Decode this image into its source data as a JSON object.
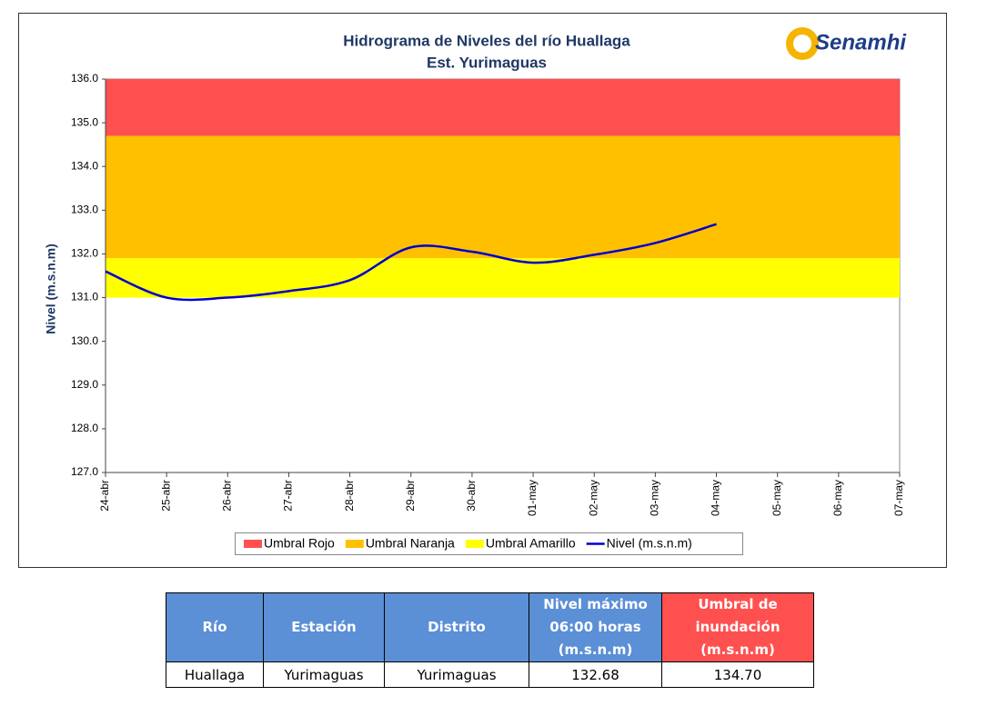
{
  "chart_data": {
    "type": "line",
    "title": "Hidrograma de Niveles del río Huallaga",
    "subtitle": "Est. Yurimaguas",
    "logo": "Senamhi",
    "y_label": "Nivel (m.s.n.m)",
    "categories": [
      "24-abr",
      "25-abr",
      "26-abr",
      "27-abr",
      "28-abr",
      "29-abr",
      "30-abr",
      "01-may",
      "02-may",
      "03-may",
      "04-may",
      "05-may",
      "06-may",
      "07-may"
    ],
    "bands": [
      {
        "name": "Umbral Rojo",
        "color": "#ff5050",
        "value": 134.7
      },
      {
        "name": "Umbral Naranja",
        "color": "#ffc000",
        "value": 131.9
      },
      {
        "name": "Umbral Amarillo",
        "color": "#ffff00",
        "value": 131.0
      }
    ],
    "series": [
      {
        "name": "Nivel (m.s.n.m)",
        "color": "#0000cc",
        "values": [
          131.6,
          131.0,
          131.0,
          131.15,
          131.4,
          132.15,
          132.05,
          131.8,
          131.98,
          132.25,
          132.68,
          null,
          null,
          null
        ]
      }
    ],
    "ylim": [
      127,
      136
    ],
    "yticks": [
      {
        "value": 127,
        "label": "127.0"
      },
      {
        "value": 128,
        "label": "128.0"
      },
      {
        "value": 129,
        "label": "129.0"
      },
      {
        "value": 130,
        "label": "130.0"
      },
      {
        "value": 131,
        "label": "131.0"
      },
      {
        "value": 132,
        "label": "132.0"
      },
      {
        "value": 133,
        "label": "133.0"
      },
      {
        "value": 134,
        "label": "134.0"
      },
      {
        "value": 135,
        "label": "135.0"
      },
      {
        "value": 136,
        "label": "136.0"
      }
    ]
  },
  "table": {
    "header": [
      "Río",
      "Estación",
      "Distrito",
      "Nivel máximo 06:00 horas (m.s.n.m)",
      "Umbral de inundación (m.s.n.m)"
    ],
    "rows": [
      [
        "Huallaga",
        "Yurimaguas",
        "Yurimaguas",
        "132.68",
        "134.70"
      ]
    ]
  }
}
